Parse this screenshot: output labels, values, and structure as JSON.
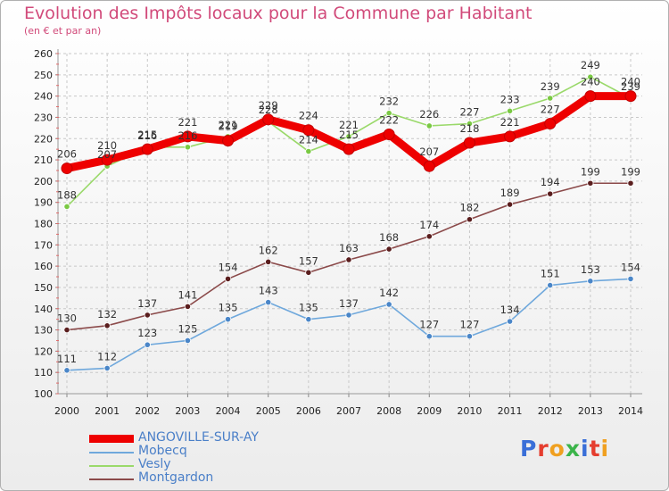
{
  "header": {
    "title": "Evolution des Impôts locaux pour la Commune par Habitant",
    "subtitle": "(en € et par an)"
  },
  "logo": {
    "text": "Proxiti",
    "letter_colors": [
      "#3a6fd8",
      "#e53e2f",
      "#f0a020",
      "#3bb44a",
      "#3a6fd8",
      "#e53e2f",
      "#f0a020"
    ]
  },
  "colors": {
    "title": "#d14a7a",
    "axis_text": "#222222",
    "grid": "#c8c8c8",
    "legend_text": "#4a7fc8"
  },
  "chart_data": {
    "type": "line",
    "title": "Evolution des Impôts locaux pour la Commune par Habitant",
    "subtitle": "(en € et par an)",
    "xlabel": "",
    "ylabel": "",
    "x": [
      "2000",
      "2001",
      "2002",
      "2003",
      "2004",
      "2005",
      "2006",
      "2007",
      "2008",
      "2009",
      "2010",
      "2011",
      "2012",
      "2013",
      "2014"
    ],
    "ylim": [
      100,
      260
    ],
    "yticks": [
      100,
      110,
      120,
      130,
      140,
      150,
      160,
      170,
      180,
      190,
      200,
      210,
      220,
      230,
      240,
      250,
      260
    ],
    "grid": true,
    "legend_position": "bottom-left",
    "series": [
      {
        "name": "ANGOVILLE-SUR-AY",
        "color": "#ee0000",
        "marker_color": "#ee0000",
        "emphasis": true,
        "values": [
          206,
          210,
          215,
          221,
          219,
          229,
          224,
          215,
          222,
          207,
          218,
          221,
          227,
          240,
          240
        ]
      },
      {
        "name": "Mobecq",
        "color": "#6fa8dc",
        "marker_color": "#4a86c8",
        "values": [
          111,
          112,
          123,
          125,
          135,
          143,
          135,
          137,
          142,
          127,
          127,
          134,
          151,
          153,
          154
        ]
      },
      {
        "name": "Vesly",
        "color": "#9ad96a",
        "marker_color": "#7ac943",
        "values": [
          188,
          207,
          216,
          216,
          221,
          228,
          214,
          221,
          232,
          226,
          227,
          233,
          239,
          249,
          239
        ]
      },
      {
        "name": "Montgardon",
        "color": "#8b4a4a",
        "marker_color": "#5a1e1e",
        "values": [
          130,
          132,
          137,
          141,
          154,
          162,
          157,
          163,
          168,
          174,
          182,
          189,
          194,
          199,
          199
        ]
      }
    ]
  }
}
